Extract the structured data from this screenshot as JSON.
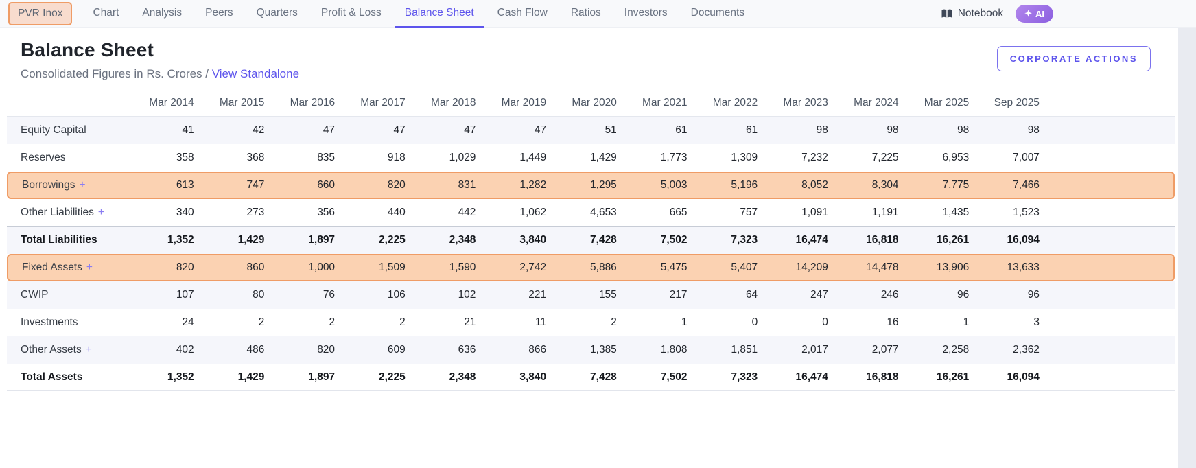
{
  "nav": {
    "company": "PVR Inox",
    "tabs": [
      "Chart",
      "Analysis",
      "Peers",
      "Quarters",
      "Profit & Loss",
      "Balance Sheet",
      "Cash Flow",
      "Ratios",
      "Investors",
      "Documents"
    ],
    "active_tab": "Balance Sheet",
    "notebook_label": "Notebook",
    "ai_sparkle": "✦",
    "ai_label": "AI"
  },
  "header": {
    "title": "Balance Sheet",
    "subtitle_prefix": "Consolidated Figures in Rs. Crores /",
    "standalone_link": "View Standalone",
    "corporate_actions_label": "CORPORATE ACTIONS"
  },
  "table": {
    "columns": [
      "Mar 2014",
      "Mar 2015",
      "Mar 2016",
      "Mar 2017",
      "Mar 2018",
      "Mar 2019",
      "Mar 2020",
      "Mar 2021",
      "Mar 2022",
      "Mar 2023",
      "Mar 2024",
      "Mar 2025",
      "Sep 2025"
    ],
    "expand_symbol": "+",
    "rows": [
      {
        "label": "Equity Capital",
        "expandable": false,
        "bold": false,
        "highlighted": false,
        "values": [
          "41",
          "42",
          "47",
          "47",
          "47",
          "47",
          "51",
          "61",
          "61",
          "98",
          "98",
          "98",
          "98"
        ]
      },
      {
        "label": "Reserves",
        "expandable": false,
        "bold": false,
        "highlighted": false,
        "values": [
          "358",
          "368",
          "835",
          "918",
          "1,029",
          "1,449",
          "1,429",
          "1,773",
          "1,309",
          "7,232",
          "7,225",
          "6,953",
          "7,007"
        ]
      },
      {
        "label": "Borrowings",
        "expandable": true,
        "bold": false,
        "highlighted": true,
        "values": [
          "613",
          "747",
          "660",
          "820",
          "831",
          "1,282",
          "1,295",
          "5,003",
          "5,196",
          "8,052",
          "8,304",
          "7,775",
          "7,466"
        ]
      },
      {
        "label": "Other Liabilities",
        "expandable": true,
        "bold": false,
        "highlighted": false,
        "values": [
          "340",
          "273",
          "356",
          "440",
          "442",
          "1,062",
          "4,653",
          "665",
          "757",
          "1,091",
          "1,191",
          "1,435",
          "1,523"
        ]
      },
      {
        "label": "Total Liabilities",
        "expandable": false,
        "bold": true,
        "highlighted": false,
        "values": [
          "1,352",
          "1,429",
          "1,897",
          "2,225",
          "2,348",
          "3,840",
          "7,428",
          "7,502",
          "7,323",
          "16,474",
          "16,818",
          "16,261",
          "16,094"
        ]
      },
      {
        "label": "Fixed Assets",
        "expandable": true,
        "bold": false,
        "highlighted": true,
        "values": [
          "820",
          "860",
          "1,000",
          "1,509",
          "1,590",
          "2,742",
          "5,886",
          "5,475",
          "5,407",
          "14,209",
          "14,478",
          "13,906",
          "13,633"
        ]
      },
      {
        "label": "CWIP",
        "expandable": false,
        "bold": false,
        "highlighted": false,
        "values": [
          "107",
          "80",
          "76",
          "106",
          "102",
          "221",
          "155",
          "217",
          "64",
          "247",
          "246",
          "96",
          "96"
        ]
      },
      {
        "label": "Investments",
        "expandable": false,
        "bold": false,
        "highlighted": false,
        "values": [
          "24",
          "2",
          "2",
          "2",
          "21",
          "11",
          "2",
          "1",
          "0",
          "0",
          "16",
          "1",
          "3"
        ]
      },
      {
        "label": "Other Assets",
        "expandable": true,
        "bold": false,
        "highlighted": false,
        "values": [
          "402",
          "486",
          "820",
          "609",
          "636",
          "866",
          "1,385",
          "1,808",
          "1,851",
          "2,017",
          "2,077",
          "2,258",
          "2,362"
        ]
      },
      {
        "label": "Total Assets",
        "expandable": false,
        "bold": true,
        "highlighted": false,
        "values": [
          "1,352",
          "1,429",
          "1,897",
          "2,225",
          "2,348",
          "3,840",
          "7,428",
          "7,502",
          "7,323",
          "16,474",
          "16,818",
          "16,261",
          "16,094"
        ]
      }
    ]
  },
  "colors": {
    "accent": "#5d54ec",
    "highlight_fill": "#fbd2b2",
    "highlight_border": "#ef9c66",
    "stripe": "#f5f6fb",
    "nav_background": "#f8f9fb"
  }
}
